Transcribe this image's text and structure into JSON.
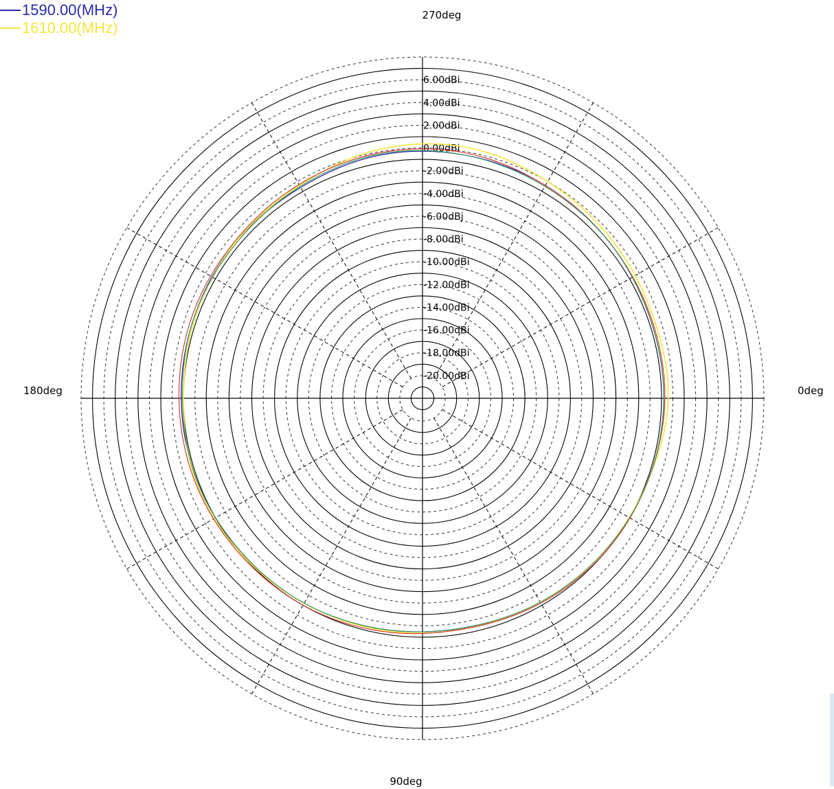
{
  "legend": [
    {
      "label": "1590.00(MHz)",
      "color": "#2a2aa8"
    },
    {
      "label": "1610.00(MHz)",
      "color": "#f5e63a"
    }
  ],
  "chart_data": {
    "type": "polar",
    "angle_labels": {
      "a0": "0deg",
      "a90": "90deg",
      "a180": "180deg",
      "a270": "270deg"
    },
    "angle_direction": "clockwise, 0deg at right, 90deg at bottom",
    "radial_ticks": [
      "6.00dBi",
      "4.00dBi",
      "2.00dBi",
      "0.00dBi",
      "-2.00dBi",
      "-4.00dBi",
      "-6.00dBj",
      "-8.00dBi",
      "-10.00dBi",
      "-12.00dBi",
      "-14.00dBi",
      "-16.00dBi",
      "-18.00dBi",
      "-20.00dBi"
    ],
    "r_range": [
      -22,
      8
    ],
    "r_unit": "dBi",
    "grid": "solid rings on odd dB levels, dashed rings on labeled even levels, dashed spokes every 30deg",
    "series": [
      {
        "name": "1590.00(MHz)",
        "color": "#2a2aa8",
        "width": 1.3,
        "angles": [
          0,
          20,
          40,
          60,
          80,
          100,
          120,
          140,
          160,
          180,
          200,
          220,
          240,
          260,
          280,
          300,
          320,
          340
        ],
        "values": [
          -0.8,
          -0.9,
          -1.1,
          -1.3,
          -1.5,
          -1.4,
          -1.2,
          -1.1,
          -0.9,
          -0.8,
          -0.7,
          -0.6,
          -0.6,
          -0.3,
          -0.3,
          -0.4,
          -0.6,
          -0.8
        ]
      },
      {
        "name": "1610.00(MHz)",
        "color": "#f5e63a",
        "width": 1.6,
        "angles": [
          0,
          20,
          40,
          60,
          80,
          100,
          120,
          140,
          160,
          180,
          200,
          220,
          240,
          260,
          280,
          300,
          320,
          340
        ],
        "values": [
          -0.4,
          -0.9,
          -1.1,
          -1.3,
          -1.4,
          -1.3,
          -1.2,
          -1.0,
          -0.8,
          -1.0,
          -0.8,
          -0.6,
          -0.4,
          0.2,
          0.4,
          0.0,
          -0.3,
          -0.5
        ]
      },
      {
        "name": "",
        "color": "#d23a3a",
        "width": 1.2,
        "angles": [
          0,
          20,
          40,
          60,
          80,
          100,
          120,
          140,
          160,
          180,
          200,
          220,
          240,
          260,
          280,
          300,
          320,
          340
        ],
        "values": [
          -0.7,
          -0.9,
          -1.0,
          -1.2,
          -1.4,
          -1.2,
          -1.0,
          -0.9,
          -0.7,
          -0.6,
          -0.5,
          -0.5,
          -0.3,
          -0.1,
          -0.1,
          -0.4,
          -0.6,
          -0.7
        ]
      },
      {
        "name": "",
        "color": "#3a9a5c",
        "width": 1.1,
        "angles": [
          0,
          20,
          40,
          60,
          80,
          100,
          120,
          140,
          160,
          180,
          200,
          220,
          240,
          260,
          280,
          300,
          320,
          340
        ],
        "values": [
          -0.8,
          -0.9,
          -1.1,
          -1.3,
          -1.5,
          -1.4,
          -1.2,
          -1.1,
          -0.9,
          -0.9,
          -0.7,
          -0.7,
          -0.5,
          -0.2,
          -0.3,
          -0.5,
          -0.6,
          -0.8
        ]
      }
    ]
  }
}
